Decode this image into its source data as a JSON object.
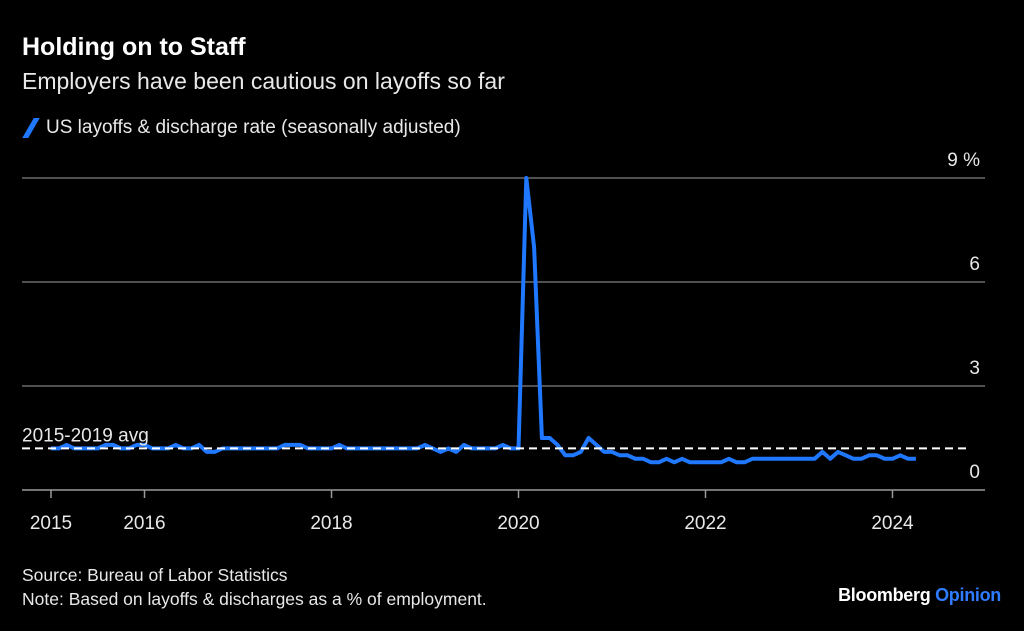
{
  "header": {
    "title": "Holding on to Staff",
    "subtitle": "Employers have been cautious on layoffs so far",
    "legend_label": "US layoffs & discharge rate (seasonally adjusted)"
  },
  "footer": {
    "source": "Source: Bureau of Labor Statistics",
    "note": "Note: Based on layoffs & discharges as a % of employment.",
    "brand_main": "Bloomberg",
    "brand_accent": "Opinion"
  },
  "colors": {
    "series": "#1f78ff",
    "background": "#000000",
    "grid": "#6a6a6a",
    "brand_accent": "#2f7cff"
  },
  "chart_data": {
    "type": "line",
    "title": "Holding on to Staff",
    "xlabel": "",
    "ylabel": "",
    "ylim": [
      0,
      9
    ],
    "xlim": [
      2015,
      2025
    ],
    "y_ticks": [
      0,
      3,
      6,
      9
    ],
    "y_tick_labels": [
      "0",
      "3",
      "6",
      "9 %"
    ],
    "x_ticks": [
      2015,
      2016,
      2018,
      2020,
      2022,
      2024
    ],
    "x_tick_labels": [
      "2015",
      "2016",
      "2018",
      "2020",
      "2022",
      "2024"
    ],
    "grid": true,
    "legend": "top-left",
    "start": "2015-01",
    "frequency": "monthly",
    "series": [
      {
        "name": "US layoffs & discharge rate (seasonally adjusted)",
        "values": [
          1.2,
          1.2,
          1.3,
          1.2,
          1.2,
          1.2,
          1.2,
          1.3,
          1.3,
          1.2,
          1.2,
          1.3,
          1.3,
          1.2,
          1.2,
          1.2,
          1.3,
          1.2,
          1.2,
          1.3,
          1.1,
          1.1,
          1.2,
          1.2,
          1.2,
          1.2,
          1.2,
          1.2,
          1.2,
          1.2,
          1.3,
          1.3,
          1.3,
          1.2,
          1.2,
          1.2,
          1.2,
          1.3,
          1.2,
          1.2,
          1.2,
          1.2,
          1.2,
          1.2,
          1.2,
          1.2,
          1.2,
          1.2,
          1.3,
          1.2,
          1.1,
          1.2,
          1.1,
          1.3,
          1.2,
          1.2,
          1.2,
          1.2,
          1.3,
          1.2,
          1.2,
          9.0,
          7.0,
          1.5,
          1.5,
          1.3,
          1.0,
          1.0,
          1.1,
          1.5,
          1.3,
          1.1,
          1.1,
          1.0,
          1.0,
          0.9,
          0.9,
          0.8,
          0.8,
          0.9,
          0.8,
          0.9,
          0.8,
          0.8,
          0.8,
          0.8,
          0.8,
          0.9,
          0.8,
          0.8,
          0.9,
          0.9,
          0.9,
          0.9,
          0.9,
          0.9,
          0.9,
          0.9,
          0.9,
          1.1,
          0.9,
          1.1,
          1.0,
          0.9,
          0.9,
          1.0,
          1.0,
          0.9,
          0.9,
          1.0,
          0.9,
          0.9
        ]
      }
    ],
    "annotations": [
      {
        "label": "2015-2019 avg",
        "value": 1.2,
        "style": "dashed"
      }
    ]
  }
}
